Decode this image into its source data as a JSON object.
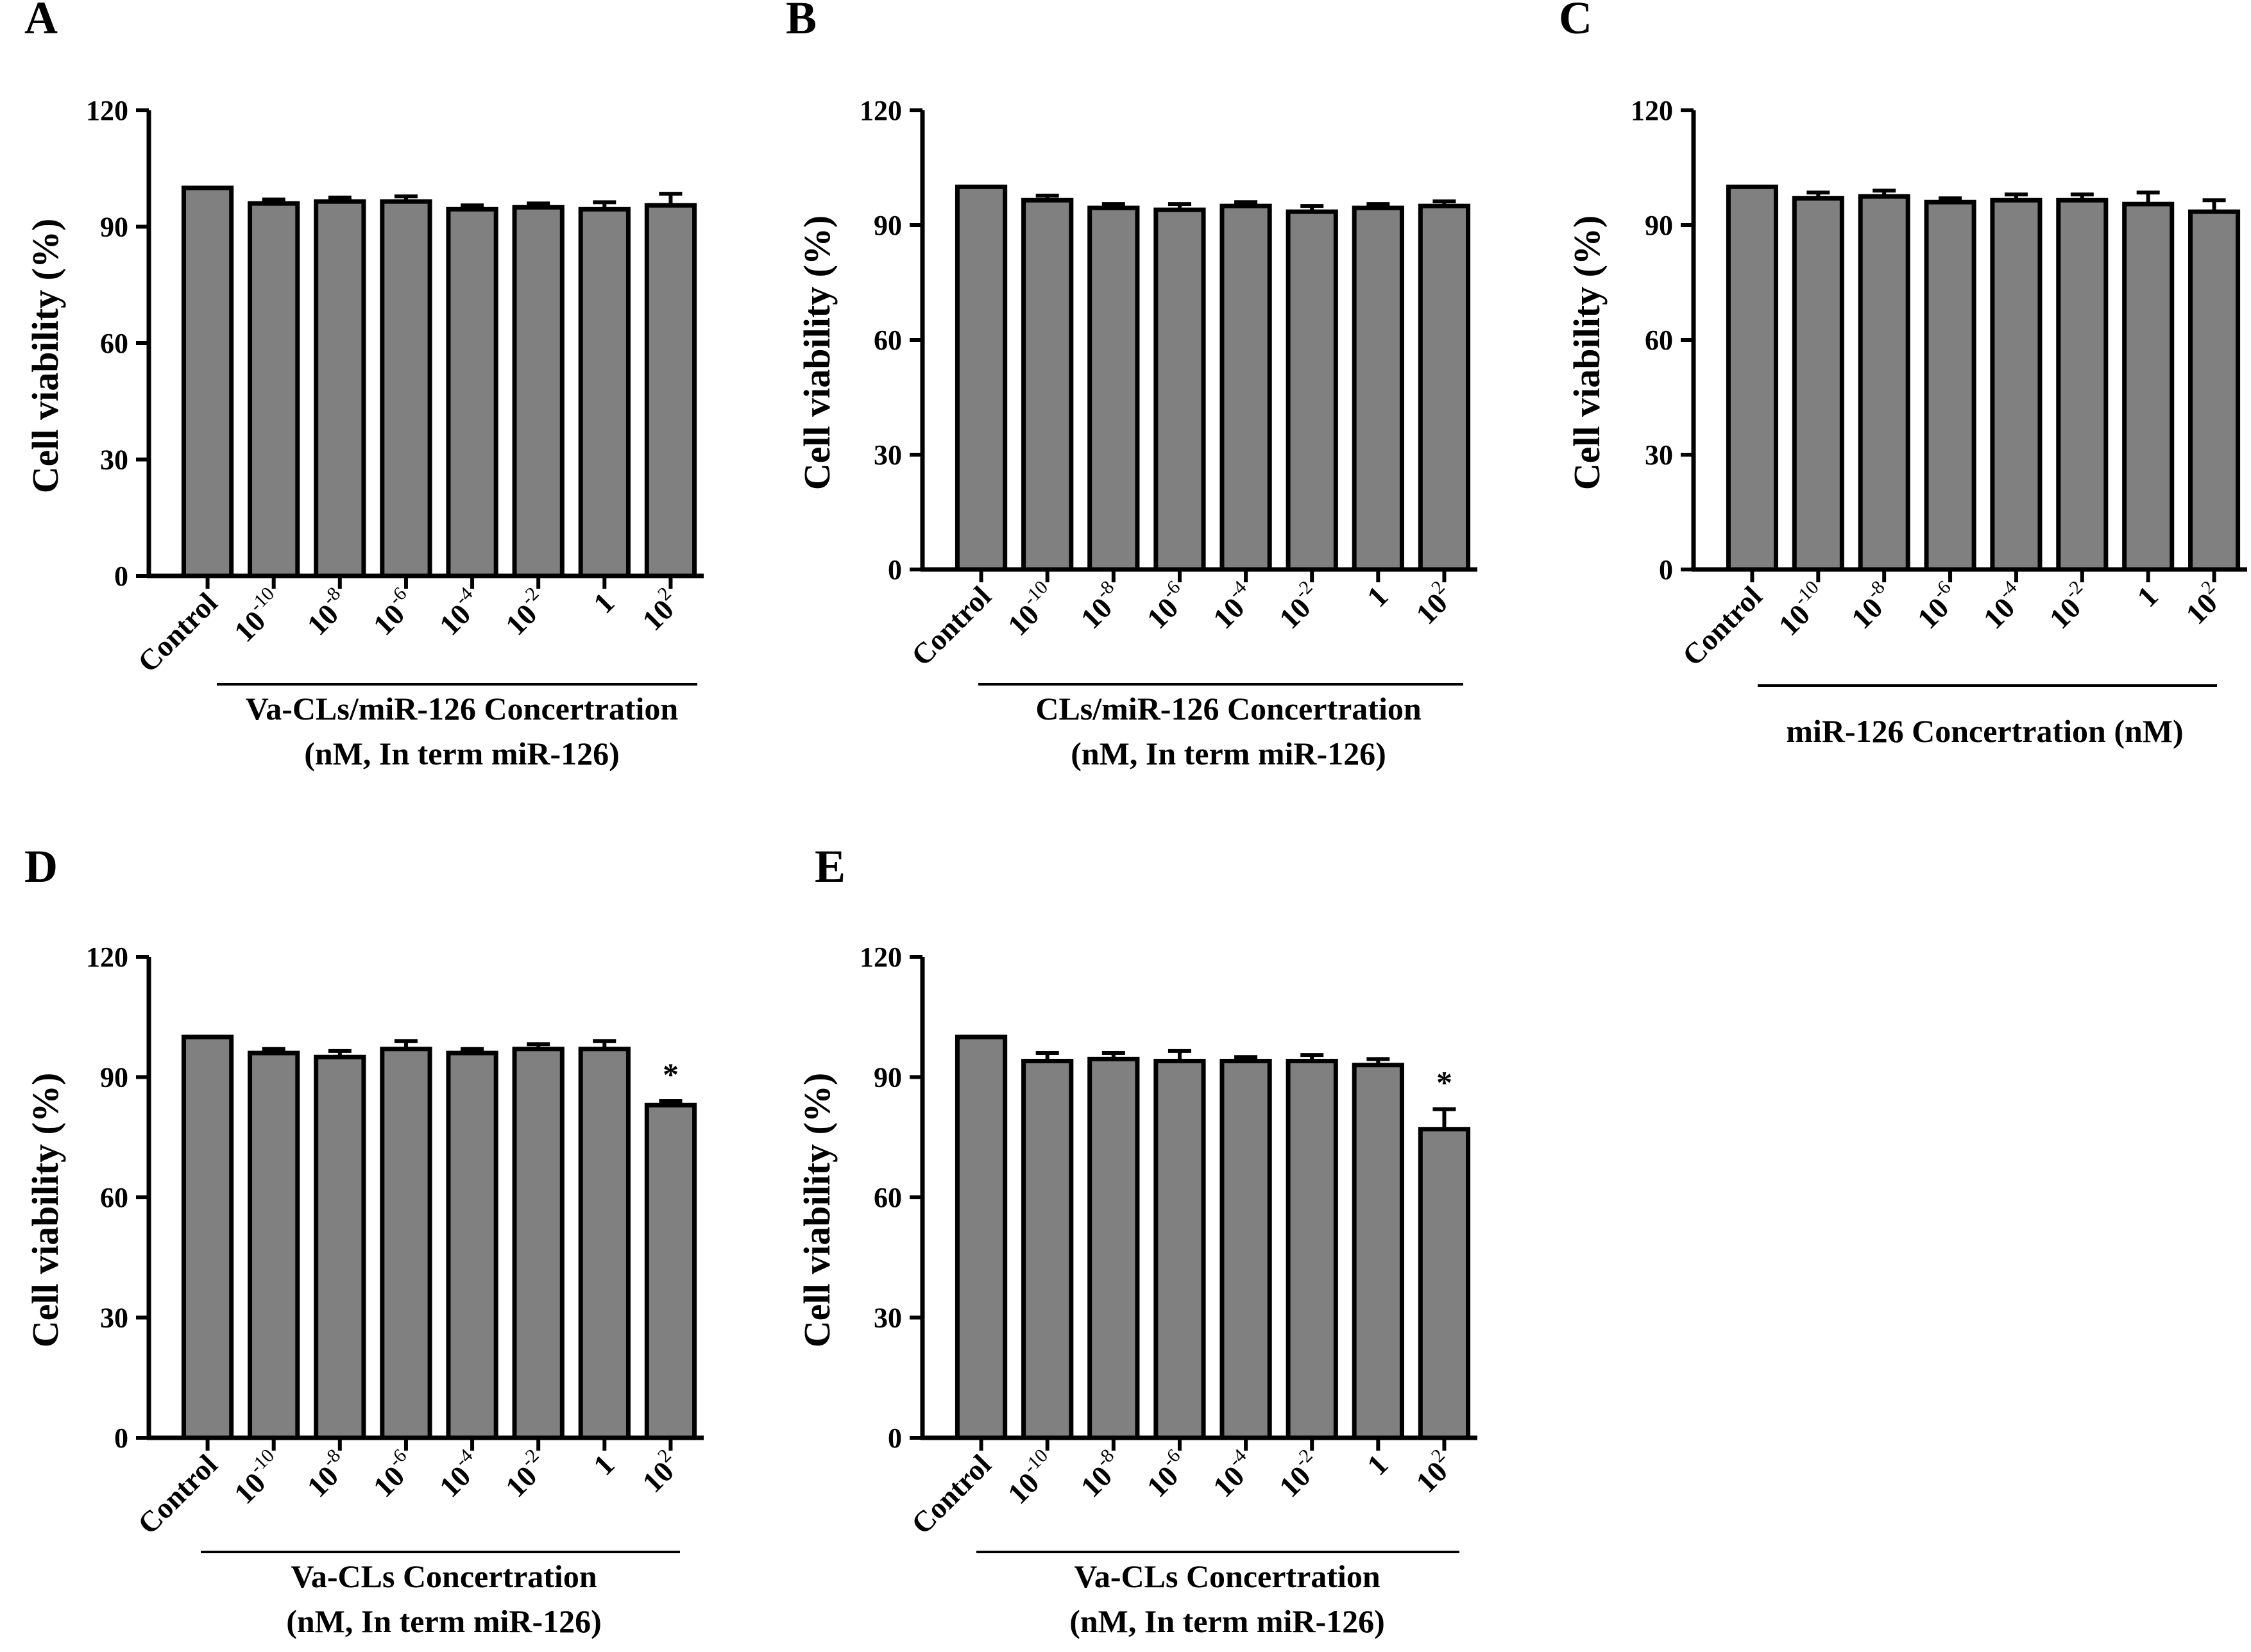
{
  "figure": {
    "bar_color": "#808080",
    "axis_color": "#000000"
  },
  "chart_data": [
    {
      "panel": "A",
      "type": "bar",
      "ylabel": "Cell viability (%)",
      "ylim": [
        0,
        120
      ],
      "yticks": [
        "0",
        "30",
        "60",
        "90",
        "120"
      ],
      "categories": [
        "Control",
        "10",
        "10",
        "10",
        "10",
        "10",
        "1",
        "10"
      ],
      "category_exponents": [
        "",
        "-10",
        "-8",
        "-6",
        "-4",
        "-2",
        "",
        "2"
      ],
      "values": [
        100,
        96,
        96.5,
        96.5,
        94.5,
        95,
        94.5,
        95.5
      ],
      "errors": [
        0,
        1,
        1,
        1.3,
        1,
        1,
        1.8,
        3
      ],
      "significance": [
        "",
        "",
        "",
        "",
        "",
        "",
        "",
        ""
      ],
      "xtitle_lines": [
        "Va-CLs/miR-126 Concertration",
        "(nM, In term miR-126)"
      ]
    },
    {
      "panel": "B",
      "type": "bar",
      "ylabel": "Cell viability (%)",
      "ylim": [
        0,
        120
      ],
      "yticks": [
        "0",
        "30",
        "60",
        "90",
        "120"
      ],
      "categories": [
        "Control",
        "10",
        "10",
        "10",
        "10",
        "10",
        "1",
        "10"
      ],
      "category_exponents": [
        "",
        "-10",
        "-8",
        "-6",
        "-4",
        "-2",
        "",
        "2"
      ],
      "values": [
        100,
        96.5,
        94.5,
        94,
        95,
        93.5,
        94.5,
        95
      ],
      "errors": [
        0,
        1.2,
        1,
        1.5,
        1,
        1.5,
        1,
        1.2
      ],
      "significance": [
        "",
        "",
        "",
        "",
        "",
        "",
        "",
        ""
      ],
      "xtitle_lines": [
        "CLs/miR-126 Concertration",
        "(nM, In term miR-126)"
      ]
    },
    {
      "panel": "C",
      "type": "bar",
      "ylabel": "Cell viability (%)",
      "ylim": [
        0,
        120
      ],
      "yticks": [
        "0",
        "30",
        "60",
        "90",
        "120"
      ],
      "categories": [
        "Control",
        "10",
        "10",
        "10",
        "10",
        "10",
        "1",
        "10"
      ],
      "category_exponents": [
        "",
        "-10",
        "-8",
        "-6",
        "-4",
        "-2",
        "",
        "2"
      ],
      "values": [
        100,
        97,
        97.5,
        96,
        96.5,
        96.5,
        95.5,
        93.5
      ],
      "errors": [
        0,
        1.5,
        1.5,
        1,
        1.5,
        1.5,
        3,
        3
      ],
      "significance": [
        "",
        "",
        "",
        "",
        "",
        "",
        "",
        ""
      ],
      "xtitle_lines": [
        "miR-126 Concertration (nM)"
      ]
    },
    {
      "panel": "D",
      "type": "bar",
      "ylabel": "Cell viability (%)",
      "ylim": [
        0,
        120
      ],
      "yticks": [
        "0",
        "30",
        "60",
        "90",
        "120"
      ],
      "categories": [
        "Control",
        "10",
        "10",
        "10",
        "10",
        "10",
        "1",
        "10"
      ],
      "category_exponents": [
        "",
        "-10",
        "-8",
        "-6",
        "-4",
        "-2",
        "",
        "2"
      ],
      "values": [
        100,
        96,
        95,
        97,
        96,
        97,
        97,
        83
      ],
      "errors": [
        0,
        1,
        1.5,
        2,
        1,
        1.2,
        2,
        1
      ],
      "significance": [
        "",
        "",
        "",
        "",
        "",
        "",
        "",
        "*"
      ],
      "xtitle_lines": [
        "Va-CLs Concertration",
        "(nM, In term miR-126)"
      ]
    },
    {
      "panel": "E",
      "type": "bar",
      "ylabel": "Cell viability (%)",
      "ylim": [
        0,
        120
      ],
      "yticks": [
        "0",
        "30",
        "60",
        "90",
        "120"
      ],
      "categories": [
        "Control",
        "10",
        "10",
        "10",
        "10",
        "10",
        "1",
        "10"
      ],
      "category_exponents": [
        "",
        "-10",
        "-8",
        "-6",
        "-4",
        "-2",
        "",
        "2"
      ],
      "values": [
        100,
        94,
        94.5,
        94,
        94,
        94,
        93,
        77
      ],
      "errors": [
        0,
        2,
        1.5,
        2.5,
        1,
        1.5,
        1.5,
        5
      ],
      "significance": [
        "",
        "",
        "",
        "",
        "",
        "",
        "",
        "*"
      ],
      "xtitle_lines": [
        "Va-CLs Concertration",
        "(nM, In term miR-126)"
      ]
    }
  ]
}
